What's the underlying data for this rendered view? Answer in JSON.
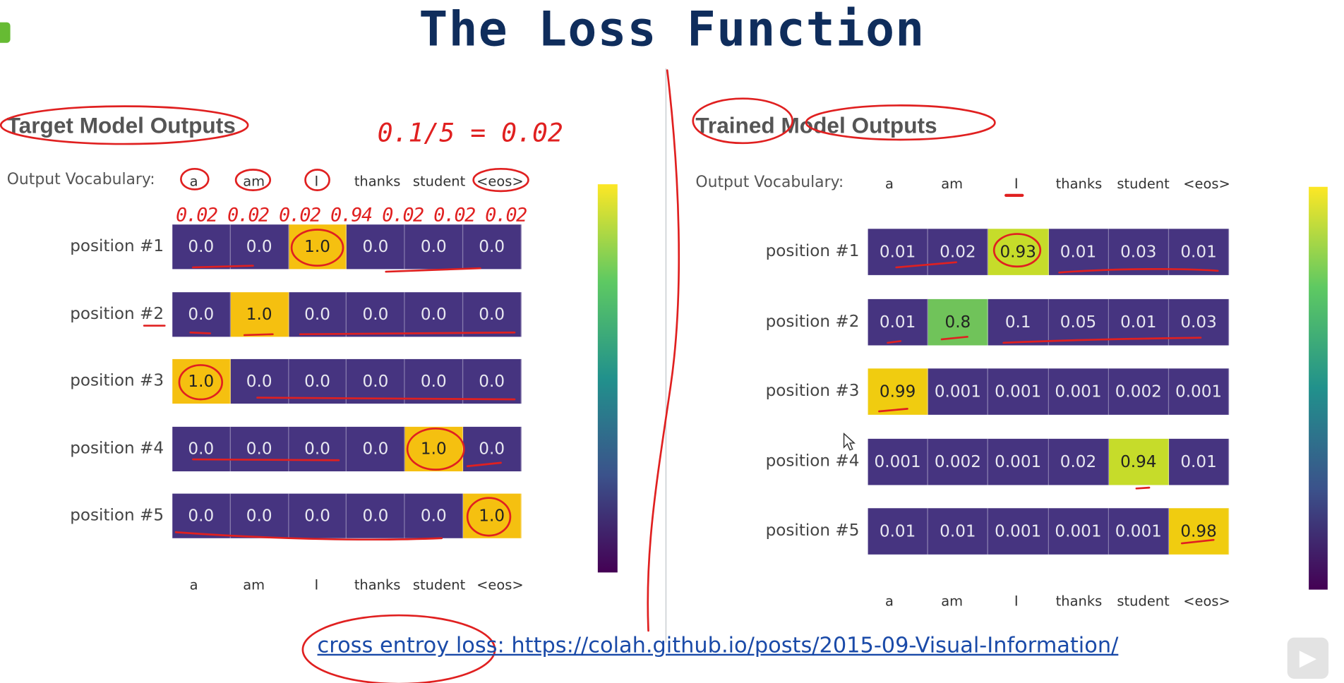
{
  "title": "The Loss Function",
  "footer": {
    "link_text": "cross entroy loss: https://colah.github.io/posts/2015-09-Visual-Information/"
  },
  "annotations": {
    "handwritten_formula": "0.1/5 = 0.02",
    "handwritten_values": "0.02 0.02 0.02 0.94 0.02 0.02 0.02"
  },
  "colors": {
    "low": "#463480",
    "high_target": "#f5c010",
    "ink": "#e02020",
    "title": "#0f2d5c"
  },
  "chart_data": [
    {
      "type": "heatmap",
      "title": "Target Model Outputs",
      "vocab_label": "Output Vocabulary:",
      "columns": [
        "a",
        "am",
        "I",
        "thanks",
        "student",
        "<eos>"
      ],
      "rows": [
        "position #1",
        "position #2",
        "position #3",
        "position #4",
        "position #5"
      ],
      "values": [
        [
          "0.0",
          "0.0",
          "1.0",
          "0.0",
          "0.0",
          "0.0"
        ],
        [
          "0.0",
          "1.0",
          "0.0",
          "0.0",
          "0.0",
          "0.0"
        ],
        [
          "1.0",
          "0.0",
          "0.0",
          "0.0",
          "0.0",
          "0.0"
        ],
        [
          "0.0",
          "0.0",
          "0.0",
          "0.0",
          "1.0",
          "0.0"
        ],
        [
          "0.0",
          "0.0",
          "0.0",
          "0.0",
          "0.0",
          "1.0"
        ]
      ],
      "colorbar": true
    },
    {
      "type": "heatmap",
      "title": "Trained Model Outputs",
      "vocab_label": "Output Vocabulary:",
      "columns": [
        "a",
        "am",
        "I",
        "thanks",
        "student",
        "<eos>"
      ],
      "rows": [
        "position #1",
        "position #2",
        "position #3",
        "position #4",
        "position #5"
      ],
      "values": [
        [
          "0.01",
          "0.02",
          "0.93",
          "0.01",
          "0.03",
          "0.01"
        ],
        [
          "0.01",
          "0.8",
          "0.1",
          "0.05",
          "0.01",
          "0.03"
        ],
        [
          "0.99",
          "0.001",
          "0.001",
          "0.001",
          "0.002",
          "0.001"
        ],
        [
          "0.001",
          "0.002",
          "0.001",
          "0.02",
          "0.94",
          "0.01"
        ],
        [
          "0.01",
          "0.01",
          "0.001",
          "0.001",
          "0.001",
          "0.98"
        ]
      ],
      "colorbar": true
    }
  ]
}
